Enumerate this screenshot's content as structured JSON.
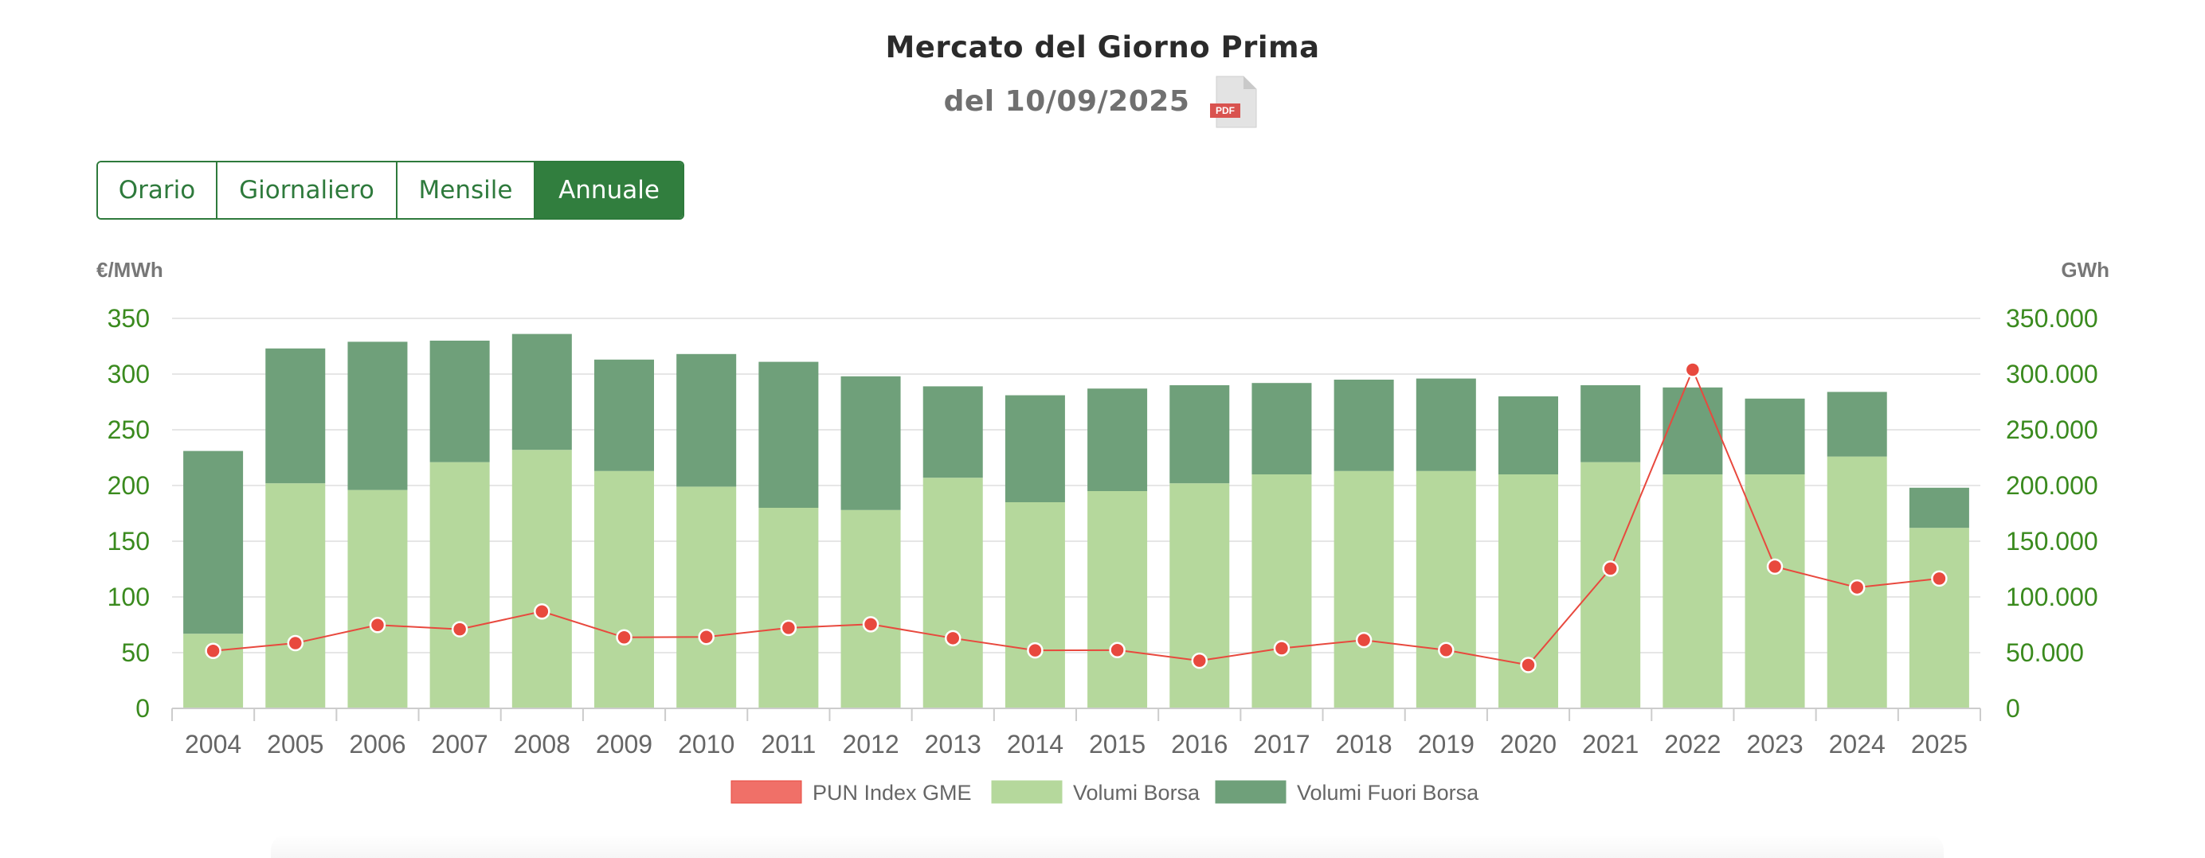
{
  "header": {
    "title": "Mercato del Giorno Prima",
    "subtitle": "del 10/09/2025",
    "pdf_icon": "pdf-file-icon",
    "pdf_label": "PDF"
  },
  "tabs": [
    {
      "label": "Orario",
      "active": false
    },
    {
      "label": "Giornaliero",
      "active": false
    },
    {
      "label": "Mensile",
      "active": false
    },
    {
      "label": "Annuale",
      "active": true
    }
  ],
  "colors": {
    "pun": "#e8493e",
    "pun_legend": "#f07068",
    "borsa": "#b5d89c",
    "fuori_borsa": "#6fa07a",
    "axis_text": "#3a8a1e",
    "unit_text": "#777777",
    "tick_text": "#666666",
    "accent": "#317e3e"
  },
  "chart_data": {
    "type": "bar",
    "stacked": true,
    "categories": [
      "2004",
      "2005",
      "2006",
      "2007",
      "2008",
      "2009",
      "2010",
      "2011",
      "2012",
      "2013",
      "2014",
      "2015",
      "2016",
      "2017",
      "2018",
      "2019",
      "2020",
      "2021",
      "2022",
      "2023",
      "2024",
      "2025"
    ],
    "y_left": {
      "unit": "€/MWh",
      "range": [
        0,
        350
      ],
      "ticks": [
        "0",
        "50",
        "100",
        "150",
        "200",
        "250",
        "300",
        "350"
      ]
    },
    "y_right": {
      "unit": "GWh",
      "range": [
        0,
        350000
      ],
      "ticks": [
        "0",
        "50.000",
        "100.000",
        "150.000",
        "200.000",
        "250.000",
        "300.000",
        "350.000"
      ]
    },
    "series": [
      {
        "name": "Volumi Borsa",
        "type": "bar",
        "axis": "right",
        "values": [
          67000,
          202000,
          196000,
          221000,
          232000,
          213000,
          199000,
          180000,
          178000,
          207000,
          185000,
          195000,
          202000,
          210000,
          213000,
          213000,
          210000,
          221000,
          210000,
          210000,
          226000,
          162000
        ]
      },
      {
        "name": "Volumi Fuori Borsa",
        "type": "bar",
        "axis": "right",
        "values": [
          164000,
          121000,
          133000,
          109000,
          104000,
          100000,
          119000,
          131000,
          120000,
          82000,
          96000,
          92000,
          88000,
          82000,
          82000,
          83000,
          70000,
          69000,
          78000,
          68000,
          58000,
          36000
        ]
      },
      {
        "name": "PUN Index GME",
        "type": "line",
        "axis": "left",
        "values": [
          51.6,
          58.6,
          74.8,
          70.99,
          86.99,
          63.72,
          64.12,
          72.23,
          75.48,
          62.99,
          52.08,
          52.31,
          42.78,
          53.95,
          61.31,
          52.32,
          38.92,
          125.46,
          303.95,
          127.24,
          108.52,
          116.5
        ]
      }
    ],
    "legend": [
      "PUN Index GME",
      "Volumi Borsa",
      "Volumi Fuori Borsa"
    ],
    "legend_position": "bottom",
    "grid": true
  }
}
